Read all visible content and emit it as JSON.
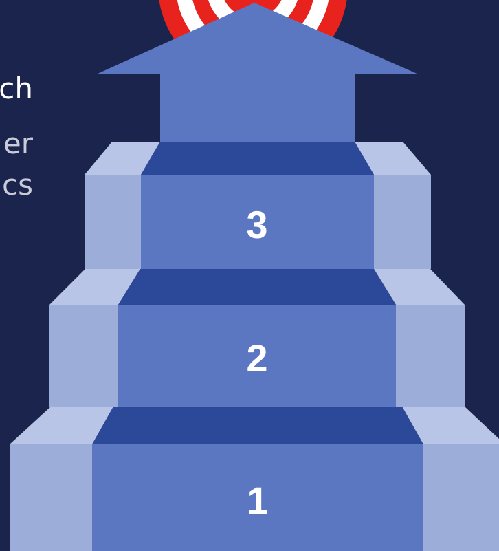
{
  "text_fragments": [
    "ch",
    "er",
    "cs"
  ],
  "steps": [
    {
      "label": "1"
    },
    {
      "label": "2"
    },
    {
      "label": "3"
    }
  ],
  "colors": {
    "background": "#1b244d",
    "step_face": "#5c77c2",
    "step_tread": "#2c4899",
    "side_light": "#b9c5e6",
    "side_mid": "#9dadd9",
    "target_red": "#e8231d",
    "target_white": "#ffffff"
  },
  "icons": [
    "target-icon",
    "up-arrow-icon"
  ]
}
